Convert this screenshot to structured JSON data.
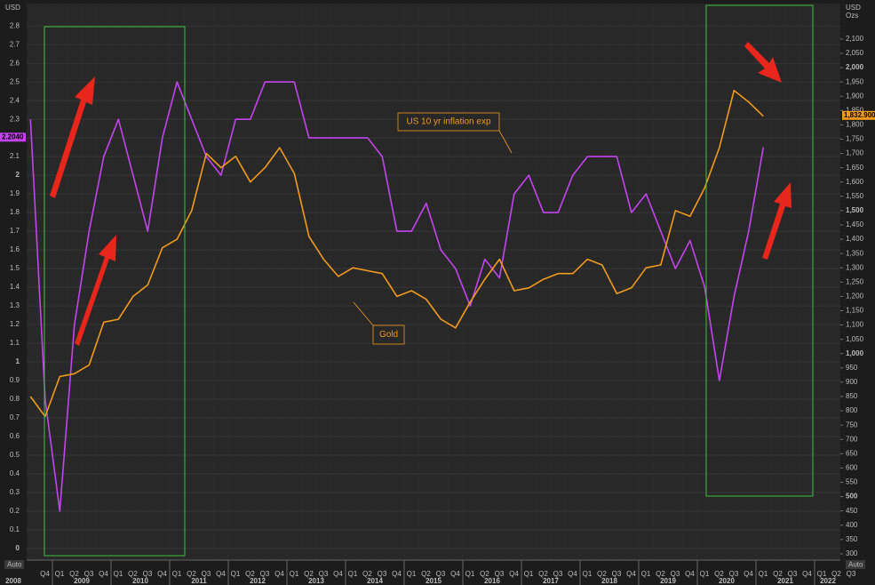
{
  "chart_data": {
    "type": "line",
    "left_axis_unit": "USD",
    "right_axis_unit": [
      "USD",
      "Ozs"
    ],
    "auto_labels": [
      "Auto",
      "Auto"
    ],
    "x": [
      "2008 Q3",
      "2008 Q4",
      "2009 Q1",
      "2009 Q2",
      "2009 Q3",
      "2009 Q4",
      "2010 Q1",
      "2010 Q2",
      "2010 Q3",
      "2010 Q4",
      "2011 Q1",
      "2011 Q2",
      "2011 Q3",
      "2011 Q4",
      "2012 Q1",
      "2012 Q2",
      "2012 Q3",
      "2012 Q4",
      "2013 Q1",
      "2013 Q2",
      "2013 Q3",
      "2013 Q4",
      "2014 Q1",
      "2014 Q2",
      "2014 Q3",
      "2014 Q4",
      "2015 Q1",
      "2015 Q2",
      "2015 Q3",
      "2015 Q4",
      "2016 Q1",
      "2016 Q2",
      "2016 Q3",
      "2016 Q4",
      "2017 Q1",
      "2017 Q2",
      "2017 Q3",
      "2017 Q4",
      "2018 Q1",
      "2018 Q2",
      "2018 Q3",
      "2018 Q4",
      "2019 Q1",
      "2019 Q2",
      "2019 Q3",
      "2019 Q4",
      "2020 Q1",
      "2020 Q2",
      "2020 Q3",
      "2020 Q4",
      "2021 Q1"
    ],
    "x_quarter_labels": [
      "Q4",
      "Q1",
      "Q2",
      "Q3",
      "Q4",
      "Q1",
      "Q2",
      "Q3",
      "Q4",
      "Q1",
      "Q2",
      "Q3",
      "Q4",
      "Q1",
      "Q2",
      "Q3",
      "Q4",
      "Q1",
      "Q2",
      "Q3",
      "Q4",
      "Q1",
      "Q2",
      "Q3",
      "Q4",
      "Q1",
      "Q2",
      "Q3",
      "Q4",
      "Q1",
      "Q2",
      "Q3",
      "Q4",
      "Q1",
      "Q2",
      "Q3",
      "Q4",
      "Q1",
      "Q2",
      "Q3",
      "Q4",
      "Q1",
      "Q2",
      "Q3",
      "Q4",
      "Q1",
      "Q2",
      "Q3",
      "Q4",
      "Q1",
      "Q2",
      "Q3",
      "Q4",
      "Q1",
      "Q2",
      "Q3"
    ],
    "x_year_labels": [
      "2008",
      "2009",
      "2010",
      "2011",
      "2012",
      "2013",
      "2014",
      "2015",
      "2016",
      "2017",
      "2018",
      "2019",
      "2020",
      "2021",
      "2022"
    ],
    "ylim": [
      -0.062,
      2.92
    ],
    "yticks": [
      0,
      0.1,
      0.2,
      0.3,
      0.4,
      0.5,
      0.6,
      0.7,
      0.8,
      0.9,
      1,
      1.1,
      1.2,
      1.3,
      1.4,
      1.5,
      1.6,
      1.7,
      1.8,
      1.9,
      2,
      2.1,
      2.2,
      2.3,
      2.4,
      2.5,
      2.6,
      2.7,
      2.8
    ],
    "y2lim": [
      278,
      2224
    ],
    "y2ticks": [
      300,
      350,
      400,
      450,
      500,
      550,
      600,
      650,
      700,
      750,
      800,
      850,
      900,
      950,
      {
        "value": 1000,
        "label": "1,000"
      },
      {
        "value": 1050,
        "label": "1,050"
      },
      {
        "value": 1100,
        "label": "1,100"
      },
      {
        "value": 1150,
        "label": "1,150"
      },
      {
        "value": 1200,
        "label": "1,200"
      },
      {
        "value": 1250,
        "label": "1,250"
      },
      {
        "value": 1300,
        "label": "1,300"
      },
      {
        "value": 1350,
        "label": "1,350"
      },
      {
        "value": 1400,
        "label": "1,400"
      },
      {
        "value": 1450,
        "label": "1,450"
      },
      {
        "value": 1500,
        "label": "1,500"
      },
      {
        "value": 1550,
        "label": "1,550"
      },
      {
        "value": 1600,
        "label": "1,600"
      },
      {
        "value": 1650,
        "label": "1,650"
      },
      {
        "value": 1700,
        "label": "1,700"
      },
      {
        "value": 1750,
        "label": "1,750"
      },
      {
        "value": 1800,
        "label": "1,800"
      },
      {
        "value": 1850,
        "label": "1,850"
      },
      {
        "value": 1900,
        "label": "1,900"
      },
      {
        "value": 1950,
        "label": "1,950"
      },
      {
        "value": 2000,
        "label": "2,000"
      },
      {
        "value": 2050,
        "label": "2,050"
      },
      {
        "value": 2100,
        "label": "2,100"
      }
    ],
    "grid": true,
    "series": [
      {
        "name": "US 10 yr inflation exp",
        "color": "#c444f0",
        "axis": "y",
        "last_value": {
          "value": 2.204,
          "label": "2.2040"
        },
        "values": [
          2.3,
          0.8,
          0.2,
          1.2,
          1.7,
          2.1,
          2.3,
          2.0,
          1.7,
          2.2,
          2.5,
          2.3,
          2.1,
          2.0,
          2.3,
          2.3,
          2.5,
          2.5,
          2.5,
          2.2,
          2.2,
          2.2,
          2.2,
          2.2,
          2.1,
          1.7,
          1.7,
          1.85,
          1.6,
          1.5,
          1.3,
          1.55,
          1.45,
          1.9,
          2.0,
          1.8,
          1.8,
          2.0,
          2.1,
          2.1,
          2.1,
          1.8,
          1.9,
          1.7,
          1.5,
          1.65,
          1.4,
          0.9,
          1.35,
          1.7,
          2.15
        ]
      },
      {
        "name": "Gold",
        "color": "#f29a1c",
        "axis": "y2",
        "last_value": {
          "value": 1832.9,
          "label": "1,832.900"
        },
        "values": [
          850,
          780,
          920,
          930,
          960,
          1110,
          1120,
          1200,
          1240,
          1370,
          1400,
          1500,
          1700,
          1650,
          1690,
          1600,
          1650,
          1720,
          1630,
          1410,
          1330,
          1270,
          1300,
          1290,
          1280,
          1200,
          1220,
          1190,
          1120,
          1090,
          1180,
          1260,
          1330,
          1220,
          1230,
          1260,
          1280,
          1280,
          1330,
          1310,
          1210,
          1230,
          1300,
          1310,
          1500,
          1480,
          1580,
          1720,
          1920,
          1880,
          1830
        ]
      }
    ]
  }
}
